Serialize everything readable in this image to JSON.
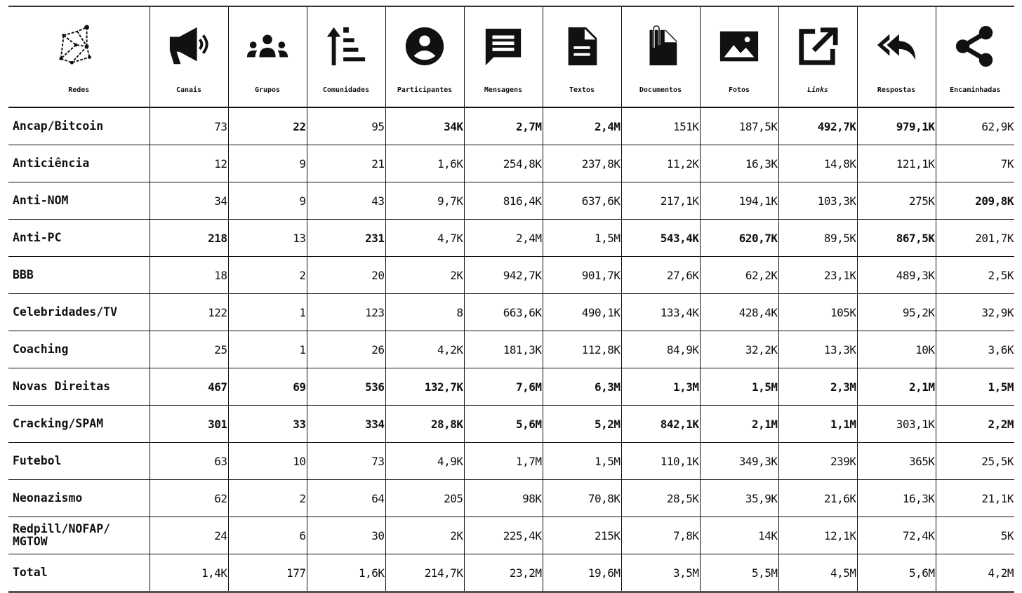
{
  "columns": [
    {
      "label": "Redes",
      "icon": "network-icon"
    },
    {
      "label": "Canais",
      "icon": "megaphone-icon"
    },
    {
      "label": "Grupos",
      "icon": "groups-icon"
    },
    {
      "label": "Comunidades",
      "icon": "sort-ascending-icon"
    },
    {
      "label": "Participantes",
      "icon": "account-circle-icon"
    },
    {
      "label": "Mensagens",
      "icon": "message-icon"
    },
    {
      "label": "Textos",
      "icon": "text-document-icon"
    },
    {
      "label": "Documentos",
      "icon": "paperclip-file-icon"
    },
    {
      "label": "Fotos",
      "icon": "image-icon"
    },
    {
      "label": "Links",
      "icon": "external-link-icon",
      "italic": true
    },
    {
      "label": "Respostas",
      "icon": "reply-all-icon"
    },
    {
      "label": "Encaminhadas",
      "icon": "share-icon"
    }
  ],
  "rows": [
    {
      "name": "Ancap/Bitcoin",
      "values": [
        "73",
        "22",
        "95",
        "34K",
        "2,7M",
        "2,4M",
        "151K",
        "187,5K",
        "492,7K",
        "979,1K",
        "62,9K"
      ],
      "bold": [
        1,
        3,
        4,
        5,
        8,
        9
      ]
    },
    {
      "name": "Anticiência",
      "values": [
        "12",
        "9",
        "21",
        "1,6K",
        "254,8K",
        "237,8K",
        "11,2K",
        "16,3K",
        "14,8K",
        "121,1K",
        "7K"
      ],
      "bold": []
    },
    {
      "name": "Anti-NOM",
      "values": [
        "34",
        "9",
        "43",
        "9,7K",
        "816,4K",
        "637,6K",
        "217,1K",
        "194,1K",
        "103,3K",
        "275K",
        "209,8K"
      ],
      "bold": [
        10
      ]
    },
    {
      "name": "Anti-PC",
      "values": [
        "218",
        "13",
        "231",
        "4,7K",
        "2,4M",
        "1,5M",
        "543,4K",
        "620,7K",
        "89,5K",
        "867,5K",
        "201,7K"
      ],
      "bold": [
        0,
        2,
        6,
        7,
        9
      ]
    },
    {
      "name": "BBB",
      "values": [
        "18",
        "2",
        "20",
        "2K",
        "942,7K",
        "901,7K",
        "27,6K",
        "62,2K",
        "23,1K",
        "489,3K",
        "2,5K"
      ],
      "bold": []
    },
    {
      "name": "Celebridades/TV",
      "values": [
        "122",
        "1",
        "123",
        "8",
        "663,6K",
        "490,1K",
        "133,4K",
        "428,4K",
        "105K",
        "95,2K",
        "32,9K"
      ],
      "bold": []
    },
    {
      "name": "Coaching",
      "values": [
        "25",
        "1",
        "26",
        "4,2K",
        "181,3K",
        "112,8K",
        "84,9K",
        "32,2K",
        "13,3K",
        "10K",
        "3,6K"
      ],
      "bold": []
    },
    {
      "name": "Novas Direitas",
      "values": [
        "467",
        "69",
        "536",
        "132,7K",
        "7,6M",
        "6,3M",
        "1,3M",
        "1,5M",
        "2,3M",
        "2,1M",
        "1,5M"
      ],
      "bold": [
        0,
        1,
        2,
        3,
        4,
        5,
        6,
        7,
        8,
        9,
        10
      ]
    },
    {
      "name": "Cracking/SPAM",
      "values": [
        "301",
        "33",
        "334",
        "28,8K",
        "5,6M",
        "5,2M",
        "842,1K",
        "2,1M",
        "1,1M",
        "303,1K",
        "2,2M"
      ],
      "bold": [
        0,
        1,
        2,
        3,
        4,
        5,
        6,
        7,
        8,
        10
      ]
    },
    {
      "name": "Futebol",
      "values": [
        "63",
        "10",
        "73",
        "4,9K",
        "1,7M",
        "1,5M",
        "110,1K",
        "349,3K",
        "239K",
        "365K",
        "25,5K"
      ],
      "bold": []
    },
    {
      "name": "Neonazismo",
      "values": [
        "62",
        "2",
        "64",
        "205",
        "98K",
        "70,8K",
        "28,5K",
        "35,9K",
        "21,6K",
        "16,3K",
        "21,1K"
      ],
      "bold": []
    },
    {
      "name": "Redpill/NOFAP/ MGTOW",
      "values": [
        "24",
        "6",
        "30",
        "2K",
        "225,4K",
        "215K",
        "7,8K",
        "14K",
        "12,1K",
        "72,4K",
        "5K"
      ],
      "bold": []
    },
    {
      "name": "Total",
      "values": [
        "1,4K",
        "177",
        "1,6K",
        "214,7K",
        "23,2M",
        "19,6M",
        "3,5M",
        "5,5M",
        "4,5M",
        "5,6M",
        "4,2M"
      ],
      "bold": []
    }
  ]
}
